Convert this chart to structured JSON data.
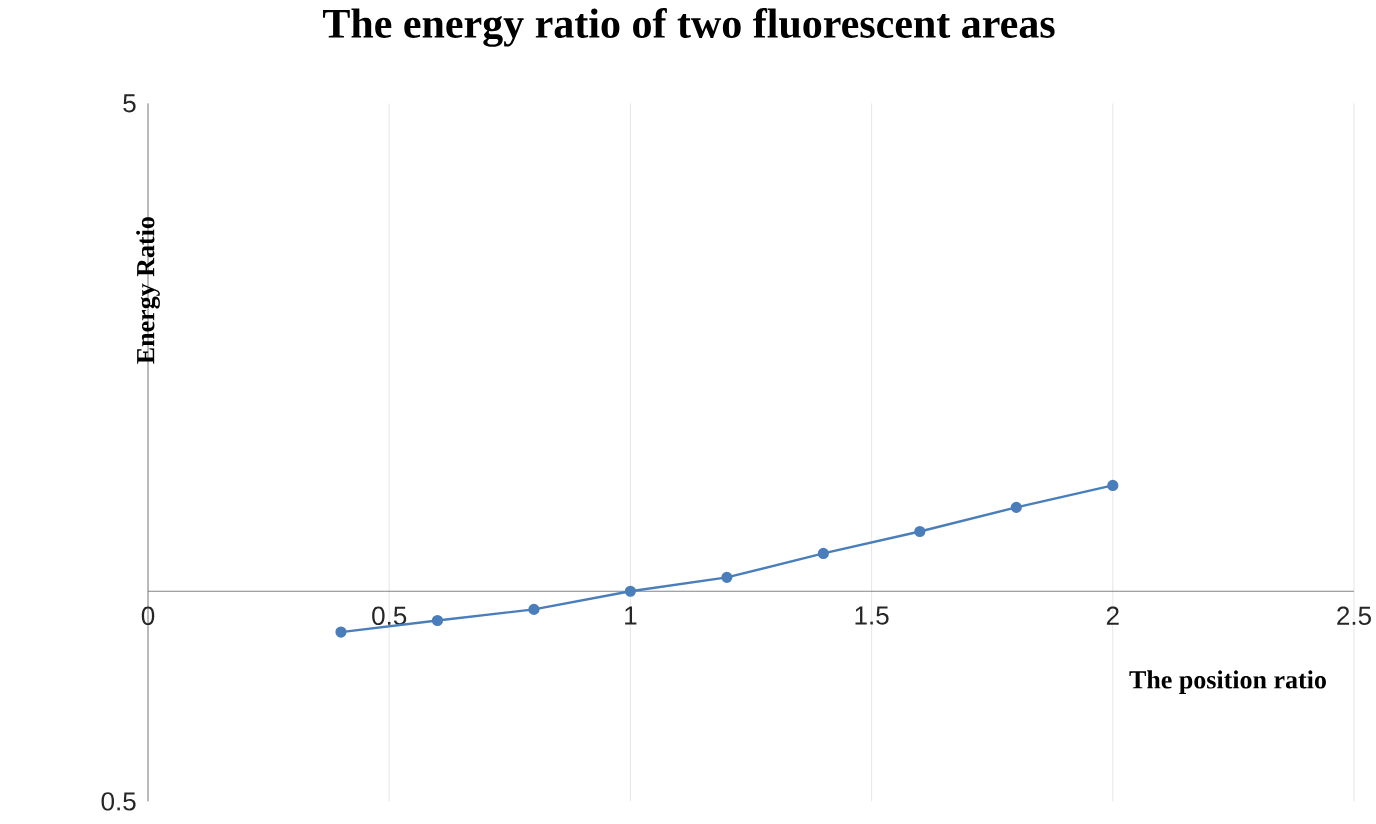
{
  "chart_data": {
    "type": "line",
    "title": "The energy ratio of two fluorescent areas",
    "xlabel": "The position ratio",
    "ylabel": "Energy Ratio",
    "x": [
      0.4,
      0.6,
      0.8,
      1.0,
      1.2,
      1.4,
      1.6,
      1.8,
      2.0
    ],
    "series": [
      {
        "color": "#4a7ebb",
        "values": [
          0.874,
          0.908,
          0.942,
          1.0,
          1.047,
          1.133,
          1.218,
          1.319,
          1.418
        ]
      }
    ],
    "xlim": [
      0,
      2.5
    ],
    "xticks": [
      0,
      0.5,
      1,
      1.5,
      2,
      2.5
    ],
    "ylim": [
      0.5,
      5
    ],
    "yticks": [
      0.5,
      5
    ],
    "log": "y",
    "grid": "x",
    "marker": "circle",
    "line_style": "solid"
  }
}
